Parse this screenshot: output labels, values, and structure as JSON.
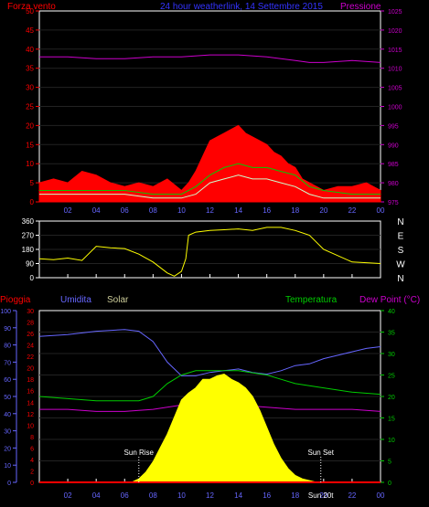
{
  "chart_data": [
    {
      "type": "line",
      "title": "24 hour weatherlink, 14 Settembre 2015",
      "left_label": "Forza vento",
      "right_label": "Pressione",
      "left_ticks": [
        "0",
        "5",
        "10",
        "15",
        "20",
        "25",
        "30",
        "35",
        "40",
        "45",
        "50"
      ],
      "right_ticks": [
        "975",
        "980",
        "985",
        "990",
        "995",
        "1000",
        "1005",
        "1010",
        "1015",
        "1020",
        "1025"
      ],
      "x_ticks": [
        "02",
        "04",
        "06",
        "08",
        "10",
        "12",
        "14",
        "16",
        "18",
        "20",
        "22",
        "00"
      ],
      "left_range": [
        0,
        50
      ],
      "right_range": [
        975,
        1025
      ],
      "x_range": [
        0,
        24
      ],
      "series": [
        {
          "color": "#ff0000",
          "x": [
            0,
            1,
            2,
            3,
            4,
            5,
            6,
            7,
            8,
            9,
            10,
            10.5,
            11,
            11.5,
            12,
            12.5,
            13,
            13.5,
            14,
            14.5,
            15,
            15.5,
            16,
            16.5,
            17,
            17.5,
            18,
            18.5,
            19,
            20,
            21,
            22,
            23,
            24
          ],
          "values": [
            5,
            6,
            5,
            8,
            7,
            5,
            4,
            5,
            4,
            6,
            3,
            5,
            8,
            12,
            16,
            17,
            18,
            19,
            20,
            18,
            17,
            16,
            15,
            13,
            12,
            10,
            9,
            6,
            5,
            3,
            4,
            4,
            5,
            3
          ]
        },
        {
          "color": "#00cc00",
          "x": [
            0,
            2,
            4,
            6,
            8,
            10,
            11,
            12,
            13,
            14,
            15,
            16,
            17,
            18,
            19,
            20,
            22,
            24
          ],
          "values": [
            3,
            3,
            3,
            3,
            2,
            2,
            4,
            7,
            9,
            10,
            9,
            9,
            8,
            7,
            4,
            3,
            2,
            2
          ]
        },
        {
          "color": "#ccffcc",
          "x": [
            0,
            2,
            4,
            6,
            8,
            10,
            11,
            12,
            13,
            14,
            15,
            16,
            17,
            18,
            19,
            20,
            22,
            24
          ],
          "values": [
            2,
            2,
            2,
            2,
            1,
            1,
            2,
            5,
            6,
            7,
            6,
            6,
            5,
            4,
            2,
            1,
            1,
            1
          ]
        },
        {
          "color": "#cc00cc",
          "x": [
            0,
            2,
            4,
            6,
            8,
            10,
            12,
            14,
            16,
            18,
            19,
            20,
            22,
            24
          ],
          "values": [
            1013,
            1013,
            1012.5,
            1012.5,
            1013,
            1013,
            1013.5,
            1013.5,
            1013,
            1012,
            1011.5,
            1011.5,
            1012,
            1011.5
          ]
        }
      ]
    },
    {
      "type": "line",
      "left_ticks": [
        "0",
        "90",
        "180",
        "270",
        "360"
      ],
      "right_ticks": [
        "N",
        "W",
        "S",
        "E",
        "N"
      ],
      "x_ticks": [
        "02",
        "04",
        "06",
        "08",
        "10",
        "12",
        "14",
        "16",
        "18",
        "20",
        "22",
        "00"
      ],
      "left_range": [
        0,
        360
      ],
      "x_range": [
        0,
        24
      ],
      "series": [
        {
          "color": "#ffff00",
          "x": [
            0,
            1,
            2,
            3,
            4,
            5,
            6,
            7,
            8,
            9,
            9.5,
            10,
            10.3,
            10.5,
            11,
            12,
            13,
            14,
            15,
            16,
            17,
            18,
            19,
            20,
            22,
            24
          ],
          "values": [
            120,
            115,
            125,
            110,
            200,
            190,
            185,
            150,
            100,
            30,
            10,
            40,
            120,
            270,
            290,
            300,
            305,
            310,
            300,
            320,
            320,
            300,
            270,
            180,
            100,
            90
          ]
        }
      ]
    },
    {
      "type": "area",
      "labels": [
        "Pioggia",
        "Umidita",
        "Solar",
        "Temperatura",
        "Dew Point (°C)"
      ],
      "label_colors": [
        "#ff0000",
        "#6666ff",
        "#cccc99",
        "#00cc00",
        "#cc00cc"
      ],
      "ticks_rain": [
        "0",
        "10",
        "20",
        "30",
        "40",
        "50",
        "60",
        "70",
        "80",
        "90",
        "100"
      ],
      "ticks_hum": [
        "0",
        "2",
        "4",
        "6",
        "8",
        "10",
        "12",
        "14",
        "16",
        "18",
        "20",
        "22",
        "24",
        "26",
        "28",
        "30"
      ],
      "ticks_temp": [
        "0",
        "5",
        "10",
        "15",
        "20",
        "25",
        "30",
        "35",
        "40"
      ],
      "x_ticks": [
        "02",
        "04",
        "06",
        "08",
        "10",
        "12",
        "14",
        "16",
        "18",
        "20",
        "22",
        "00"
      ],
      "annotations": [
        "Sun Rise",
        "Sun Set",
        "Sun 20t"
      ],
      "sunrise_hour": 7,
      "sunset_hour": 19.8,
      "x_range": [
        0,
        24
      ],
      "rain_range": [
        0,
        100
      ],
      "temp_range": [
        0,
        40
      ],
      "series": [
        {
          "name": "Umidita",
          "color": "#6666ff",
          "axis": "rain",
          "x": [
            0,
            2,
            4,
            6,
            7,
            8,
            9,
            10,
            11,
            12,
            13,
            14,
            15,
            16,
            17,
            18,
            19,
            20,
            21,
            22,
            23,
            24
          ],
          "values": [
            85,
            86,
            88,
            89,
            88,
            82,
            70,
            62,
            62,
            64,
            65,
            66,
            64,
            63,
            65,
            68,
            69,
            72,
            74,
            76,
            78,
            79
          ]
        },
        {
          "name": "Temperatura",
          "color": "#00cc00",
          "axis": "temp",
          "x": [
            0,
            2,
            4,
            6,
            7,
            8,
            9,
            10,
            11,
            12,
            13,
            14,
            15,
            16,
            17,
            18,
            19,
            20,
            22,
            24
          ],
          "values": [
            20,
            19.5,
            19,
            19,
            19,
            20,
            23,
            25,
            26,
            26,
            26,
            26,
            25.5,
            25,
            24,
            23,
            22.5,
            22,
            21,
            20.5
          ]
        },
        {
          "name": "Dew Point (°C)",
          "color": "#cc00cc",
          "axis": "temp",
          "x": [
            0,
            2,
            4,
            6,
            8,
            10,
            12,
            14,
            16,
            18,
            20,
            22,
            24
          ],
          "values": [
            17,
            17,
            16.5,
            16.5,
            17,
            18,
            18,
            18,
            17.5,
            17,
            17,
            17,
            16.5
          ]
        },
        {
          "name": "Solar",
          "color": "#ffff00",
          "axis": "rain",
          "x": [
            6.5,
            7,
            7.5,
            8,
            8.5,
            9,
            9.5,
            10,
            10.5,
            11,
            11.5,
            12,
            12.5,
            13,
            13.5,
            14,
            14.5,
            15,
            15.5,
            16,
            16.5,
            17,
            17.5,
            18,
            18.5,
            19,
            19.5,
            20
          ],
          "values": [
            0,
            2,
            6,
            12,
            20,
            28,
            38,
            48,
            52,
            55,
            60,
            60,
            62,
            63,
            60,
            58,
            55,
            50,
            42,
            32,
            22,
            14,
            8,
            4,
            2,
            1,
            0,
            0
          ]
        },
        {
          "name": "Pioggia",
          "color": "#ff0000",
          "axis": "rain",
          "x": [
            0,
            24
          ],
          "values": [
            0,
            0
          ]
        }
      ]
    }
  ]
}
